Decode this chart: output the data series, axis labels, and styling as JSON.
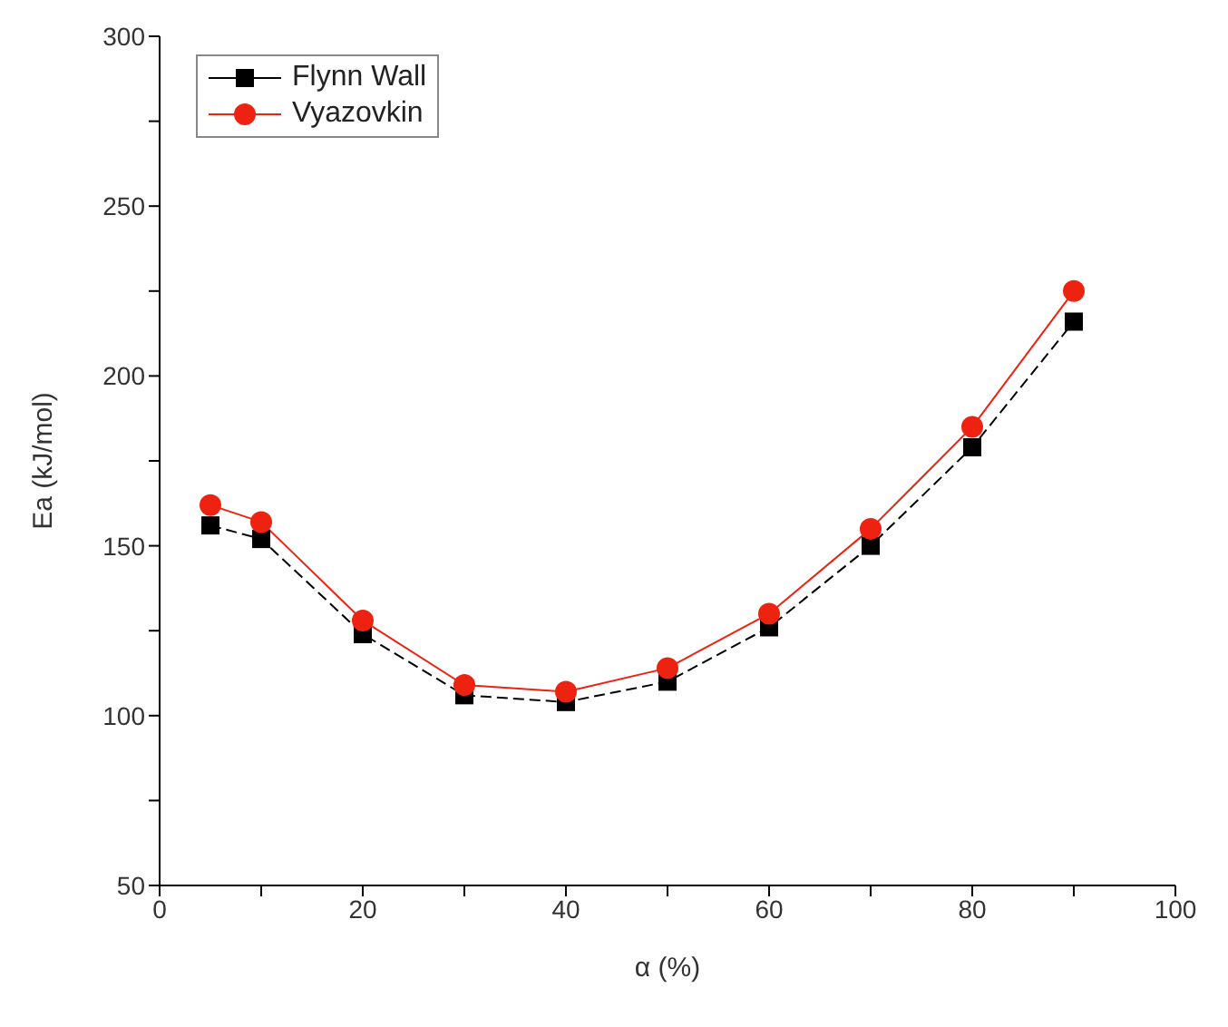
{
  "chart_data": {
    "type": "line",
    "xlabel": "α (%)",
    "ylabel": "Ea (kJ/mol)",
    "x": [
      5,
      10,
      20,
      30,
      40,
      50,
      60,
      70,
      80,
      90
    ],
    "series": [
      {
        "name": "Flynn Wall",
        "color": "#000000",
        "marker": "square",
        "line_style": "dashed",
        "values": [
          156,
          152,
          124,
          106,
          104,
          110,
          126,
          150,
          179,
          216
        ]
      },
      {
        "name": "Vyazovkin",
        "color": "#ee2211",
        "marker": "circle",
        "line_style": "solid",
        "values": [
          162,
          157,
          128,
          109,
          107,
          114,
          130,
          155,
          185,
          225
        ]
      }
    ],
    "xlim": [
      0,
      100
    ],
    "xticks": [
      0,
      {
        "value": 10,
        "label": null
      },
      20,
      {
        "value": 30,
        "label": null
      },
      40,
      {
        "value": 50,
        "label": null
      },
      60,
      {
        "value": 70,
        "label": null
      },
      80,
      {
        "value": 90,
        "label": null
      },
      100
    ],
    "ylim": [
      50,
      300
    ],
    "yticks": [
      50,
      {
        "value": 75,
        "label": null
      },
      100,
      {
        "value": 125,
        "label": null
      },
      150,
      {
        "value": 175,
        "label": null
      },
      200,
      {
        "value": 225,
        "label": null
      },
      250,
      {
        "value": 275,
        "label": null
      },
      300
    ],
    "grid": false,
    "legend": "top left"
  }
}
